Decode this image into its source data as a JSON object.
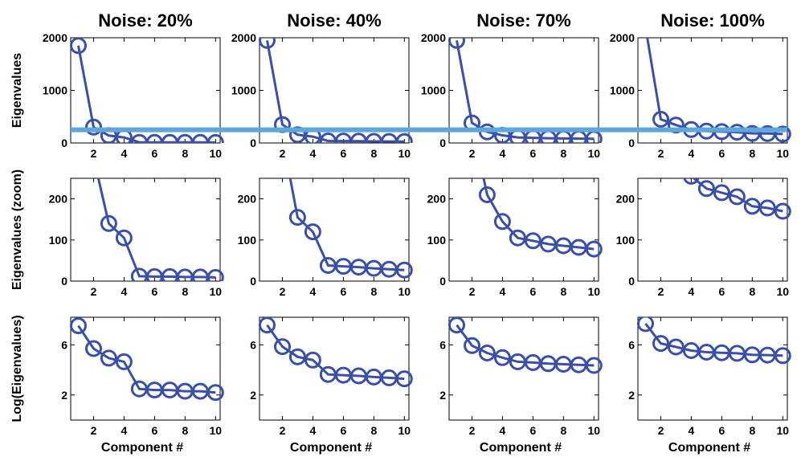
{
  "chart_data": {
    "type": "line",
    "column_titles": [
      "Noise: 20%",
      "Noise: 40%",
      "Noise: 70%",
      "Noise: 100%"
    ],
    "row_ylabels": [
      "Eigenvalues",
      "Eigenvalues (zoom)",
      "Log(Eigenvalues)"
    ],
    "xlabel": "Component #",
    "x": [
      1,
      2,
      3,
      4,
      5,
      6,
      7,
      8,
      9,
      10
    ],
    "xlim": [
      0.5,
      10.3
    ],
    "xticks": [
      2,
      4,
      6,
      8,
      10
    ],
    "rows": [
      {
        "ylim": [
          0,
          2000
        ],
        "yticks": [
          0,
          1000,
          2000
        ],
        "log": false
      },
      {
        "ylim": [
          0,
          250
        ],
        "yticks": [
          0,
          100,
          200
        ],
        "log": false
      },
      {
        "ylim": [
          0,
          8.2
        ],
        "yticks": [
          2,
          6
        ],
        "log": true
      }
    ],
    "series": [
      {
        "values": [
          1850,
          300,
          140,
          105,
          12,
          11,
          11,
          10,
          10,
          9
        ]
      },
      {
        "values": [
          1950,
          350,
          155,
          120,
          38,
          36,
          34,
          31,
          29,
          27
        ]
      },
      {
        "values": [
          1950,
          380,
          210,
          145,
          105,
          98,
          90,
          86,
          82,
          78
        ]
      },
      {
        "values": [
          2200,
          450,
          340,
          255,
          225,
          215,
          205,
          182,
          178,
          170
        ]
      }
    ],
    "threshold_line": {
      "y": 250,
      "color": "#5ea7dc"
    },
    "colors": {
      "series": "#3a50a8",
      "threshold": "#5ea7dc"
    },
    "grid": false,
    "legend": "none"
  }
}
